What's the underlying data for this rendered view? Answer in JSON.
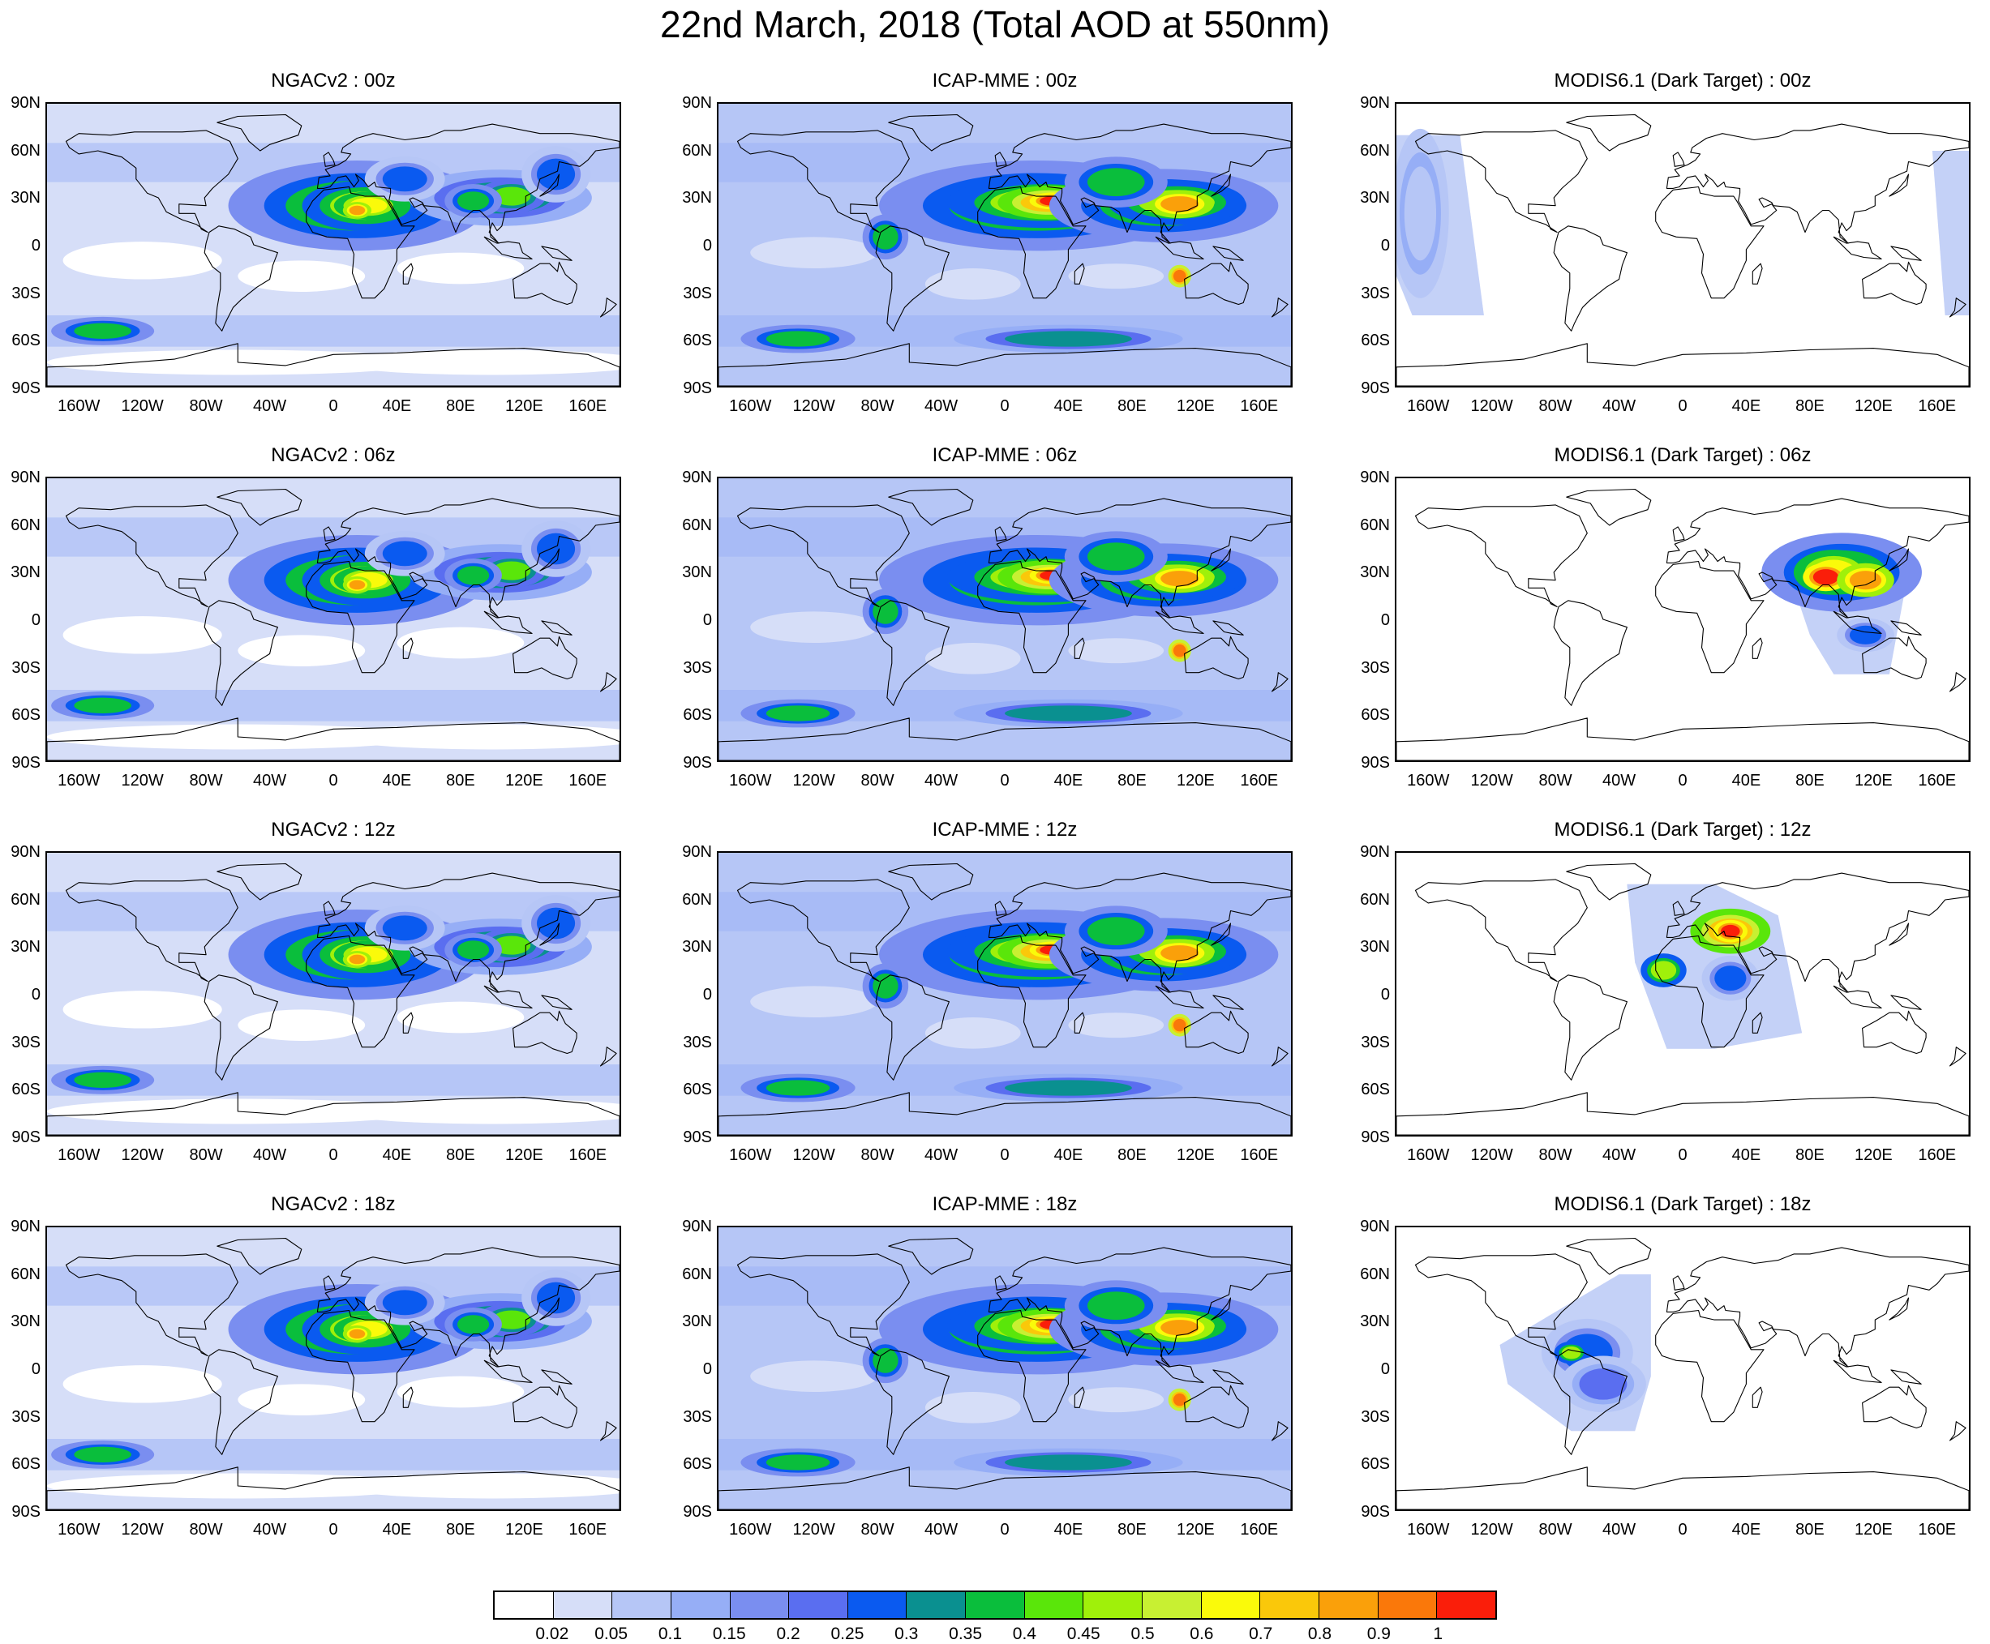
{
  "title": "22nd March, 2018 (Total AOD at 550nm)",
  "latitude_labels": [
    "90N",
    "60N",
    "30N",
    "0",
    "30S",
    "60S",
    "90S"
  ],
  "longitude_labels": [
    "160W",
    "120W",
    "80W",
    "40W",
    "0",
    "40E",
    "80E",
    "120E",
    "160E"
  ],
  "panels": [
    {
      "title": "NGACv2 : 00z",
      "model": "ngac",
      "time": "00z"
    },
    {
      "title": "ICAP-MME : 00z",
      "model": "icap",
      "time": "00z"
    },
    {
      "title": "MODIS6.1 (Dark Target) : 00z",
      "model": "modis",
      "time": "00z",
      "swath": "pacific-east"
    },
    {
      "title": "NGACv2 : 06z",
      "model": "ngac",
      "time": "06z"
    },
    {
      "title": "ICAP-MME : 06z",
      "model": "icap",
      "time": "06z"
    },
    {
      "title": "MODIS6.1 (Dark Target) : 06z",
      "model": "modis",
      "time": "06z",
      "swath": "asia"
    },
    {
      "title": "NGACv2 : 12z",
      "model": "ngac",
      "time": "12z"
    },
    {
      "title": "ICAP-MME : 12z",
      "model": "icap",
      "time": "12z"
    },
    {
      "title": "MODIS6.1 (Dark Target) : 12z",
      "model": "modis",
      "time": "12z",
      "swath": "africa-europe"
    },
    {
      "title": "NGACv2 : 18z",
      "model": "ngac",
      "time": "18z"
    },
    {
      "title": "ICAP-MME : 18z",
      "model": "icap",
      "time": "18z"
    },
    {
      "title": "MODIS6.1 (Dark Target) : 18z",
      "model": "modis",
      "time": "18z",
      "swath": "south-america"
    }
  ],
  "colorbar": {
    "colors": [
      "#ffffff",
      "#d6def8",
      "#b6c6f6",
      "#96aef6",
      "#7a8ef0",
      "#5a6ef0",
      "#0a5af0",
      "#0a9090",
      "#0abe3c",
      "#5ae60a",
      "#a0f00a",
      "#c8f032",
      "#fafa0a",
      "#fac80a",
      "#faa00a",
      "#fa780a",
      "#fa1e0a"
    ],
    "labels": [
      "0.02",
      "0.05",
      "0.1",
      "0.15",
      "0.2",
      "0.25",
      "0.3",
      "0.35",
      "0.4",
      "0.45",
      "0.5",
      "0.6",
      "0.7",
      "0.8",
      "0.9",
      "1"
    ]
  }
}
